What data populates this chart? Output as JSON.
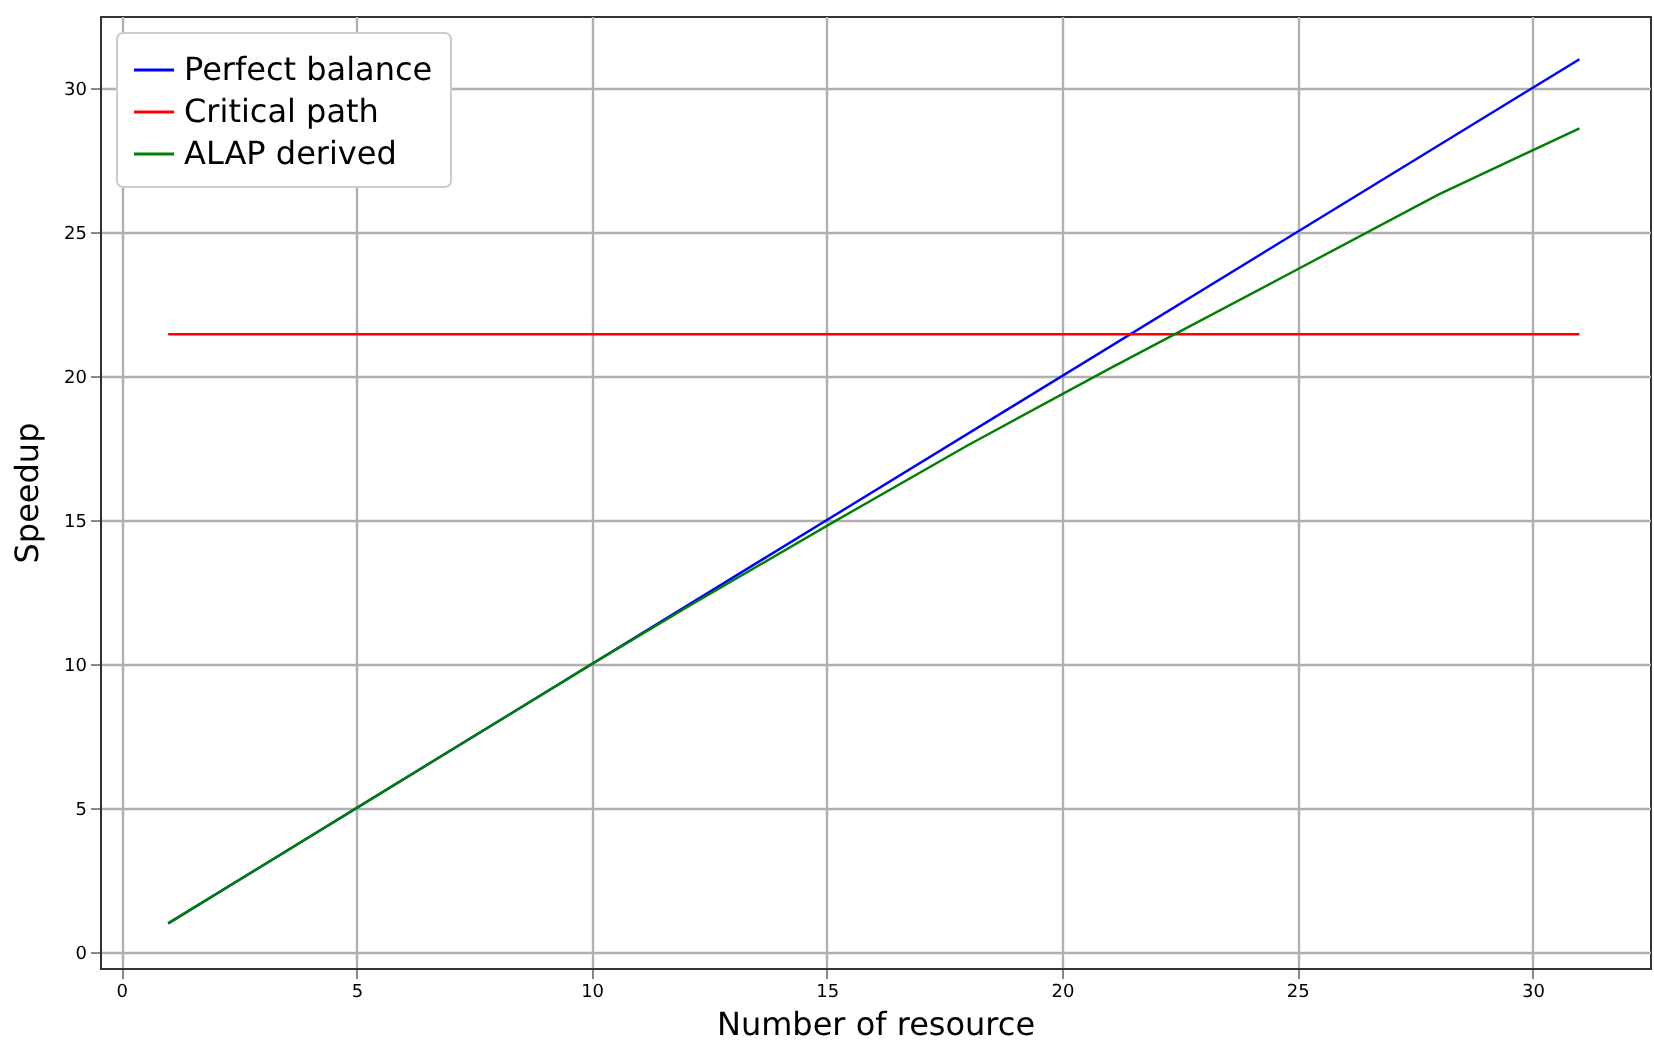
{
  "chart_data": {
    "type": "line",
    "xlabel": "Number of resource",
    "ylabel": "Speedup",
    "xlim": [
      -0.45,
      32.5
    ],
    "ylim": [
      -0.55,
      32.5
    ],
    "xticks": [
      0,
      5,
      10,
      15,
      20,
      25,
      30
    ],
    "yticks": [
      0,
      5,
      10,
      15,
      20,
      25,
      30
    ],
    "grid": true,
    "legend": "top left",
    "marker": "none",
    "line_style": "solid",
    "series": [
      {
        "name": "Perfect balance",
        "color": "#0000ff",
        "x": [
          1,
          31
        ],
        "values": [
          1,
          31
        ]
      },
      {
        "name": "Critical path",
        "color": "#ff0000",
        "x": [
          1,
          31
        ],
        "values": [
          21.45,
          21.45
        ]
      },
      {
        "name": "ALAP derived",
        "color": "#008000",
        "x": [
          1,
          5,
          8,
          10,
          12,
          15,
          18,
          21,
          25,
          28,
          31
        ],
        "values": [
          1,
          5,
          8,
          10,
          11.95,
          14.8,
          17.6,
          20.25,
          23.7,
          26.3,
          28.6
        ]
      }
    ]
  }
}
